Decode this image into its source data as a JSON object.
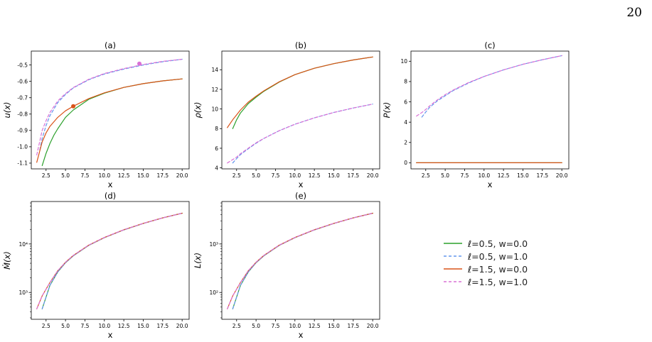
{
  "page": {
    "number": "20"
  },
  "colors": {
    "l05_w00": "#2ca02c",
    "l05_w10": "#6495ed",
    "l15_w00": "#d95319",
    "l15_w10": "#da70d6"
  },
  "legend": [
    {
      "label": "ℓ=0.5, w=0.0",
      "color": "#2ca02c",
      "dash": false
    },
    {
      "label": "ℓ=0.5, w=1.0",
      "color": "#6495ed",
      "dash": true
    },
    {
      "label": "ℓ=1.5, w=0.0",
      "color": "#d95319",
      "dash": false
    },
    {
      "label": "ℓ=1.5, w=1.0",
      "color": "#da70d6",
      "dash": true
    }
  ],
  "chart_data": [
    {
      "id": "a",
      "type": "line",
      "title": "(a)",
      "xlabel": "x",
      "ylabel": "u(x)",
      "scale": "linear",
      "xlim": [
        0.6,
        20.9
      ],
      "ylim": [
        -1.135,
        -0.415
      ],
      "xticks": [
        "2.5",
        "5.0",
        "7.5",
        "10.0",
        "12.5",
        "15.0",
        "17.5",
        "20.0"
      ],
      "yticks": [
        "-0.5",
        "-0.6",
        "-0.7",
        "-0.8",
        "-0.9",
        "-1.0",
        "-1.1"
      ],
      "series": [
        {
          "name": "ℓ=0.5, w=0.0",
          "color": "#2ca02c",
          "dash": false,
          "x": [
            2.0,
            2.5,
            3.0,
            3.5,
            4.0,
            5.0,
            6.0,
            8.0,
            10.0,
            12.5,
            15.0,
            17.5,
            20.0
          ],
          "y": [
            -1.115,
            -1.04,
            -0.98,
            -0.93,
            -0.89,
            -0.82,
            -0.775,
            -0.71,
            -0.672,
            -0.637,
            -0.614,
            -0.597,
            -0.585
          ]
        },
        {
          "name": "ℓ=0.5, w=1.0",
          "color": "#6495ed",
          "dash": true,
          "x": [
            1.7,
            2.0,
            2.5,
            3.0,
            4.0,
            5.0,
            6.0,
            8.0,
            10.0,
            12.5,
            15.0,
            17.5,
            20.0
          ],
          "y": [
            -1.02,
            -0.95,
            -0.87,
            -0.81,
            -0.73,
            -0.68,
            -0.64,
            -0.59,
            -0.555,
            -0.525,
            -0.5,
            -0.48,
            -0.465
          ]
        },
        {
          "name": "ℓ=1.5, w=0.0",
          "color": "#d95319",
          "dash": false,
          "x": [
            1.3,
            2.0,
            2.5,
            3.0,
            4.0,
            5.0,
            6.0,
            8.0,
            10.0,
            12.5,
            15.0,
            17.5,
            20.0
          ],
          "y": [
            -1.095,
            -0.97,
            -0.915,
            -0.875,
            -0.82,
            -0.78,
            -0.752,
            -0.705,
            -0.67,
            -0.637,
            -0.614,
            -0.597,
            -0.585
          ]
        },
        {
          "name": "ℓ=1.5, w=1.0",
          "color": "#da70d6",
          "dash": true,
          "x": [
            1.3,
            2.0,
            2.5,
            3.0,
            4.0,
            5.0,
            6.0,
            8.0,
            10.0,
            12.5,
            15.0,
            17.5,
            20.0
          ],
          "y": [
            -1.05,
            -0.9,
            -0.84,
            -0.79,
            -0.72,
            -0.675,
            -0.638,
            -0.587,
            -0.552,
            -0.522,
            -0.497,
            -0.478,
            -0.465
          ]
        }
      ],
      "markers": [
        {
          "x": 6.0,
          "y": -0.752,
          "color": "#d95319"
        },
        {
          "x": 14.5,
          "y": -0.492,
          "color": "#da70d6"
        }
      ]
    },
    {
      "id": "b",
      "type": "line",
      "title": "(b)",
      "xlabel": "x",
      "ylabel": "ρ(x)",
      "scale": "linear",
      "xlim": [
        0.6,
        20.9
      ],
      "ylim": [
        3.9,
        15.9
      ],
      "xticks": [
        "2.5",
        "5.0",
        "7.5",
        "10.0",
        "12.5",
        "15.0",
        "17.5",
        "20.0"
      ],
      "yticks": [
        "4",
        "6",
        "8",
        "10",
        "12",
        "14"
      ],
      "series": [
        {
          "name": "ℓ=0.5, w=0.0",
          "color": "#2ca02c",
          "dash": false,
          "x": [
            2.0,
            2.5,
            3.0,
            4.0,
            5.0,
            6.0,
            8.0,
            10.0,
            12.5,
            15.0,
            17.5,
            20.0
          ],
          "y": [
            8.0,
            8.9,
            9.6,
            10.55,
            11.2,
            11.8,
            12.75,
            13.5,
            14.15,
            14.62,
            15.0,
            15.3
          ]
        },
        {
          "name": "ℓ=0.5, w=1.0",
          "color": "#6495ed",
          "dash": true,
          "x": [
            2.0,
            2.5,
            3.0,
            4.0,
            5.0,
            6.0,
            8.0,
            10.0,
            12.5,
            15.0,
            17.5,
            20.0
          ],
          "y": [
            4.5,
            4.95,
            5.35,
            5.95,
            6.5,
            7.0,
            7.8,
            8.45,
            9.1,
            9.65,
            10.1,
            10.5
          ]
        },
        {
          "name": "ℓ=1.5, w=0.0",
          "color": "#d95319",
          "dash": false,
          "x": [
            1.3,
            2.0,
            2.5,
            3.0,
            4.0,
            5.0,
            6.0,
            8.0,
            10.0,
            12.5,
            15.0,
            17.5,
            20.0
          ],
          "y": [
            8.1,
            8.9,
            9.4,
            9.9,
            10.7,
            11.3,
            11.85,
            12.78,
            13.5,
            14.15,
            14.62,
            15.0,
            15.3
          ]
        },
        {
          "name": "ℓ=1.5, w=1.0",
          "color": "#da70d6",
          "dash": true,
          "x": [
            1.3,
            2.0,
            2.5,
            3.0,
            4.0,
            5.0,
            6.0,
            8.0,
            10.0,
            12.5,
            15.0,
            17.5,
            20.0
          ],
          "y": [
            4.5,
            4.85,
            5.1,
            5.45,
            6.0,
            6.55,
            7.0,
            7.8,
            8.45,
            9.1,
            9.65,
            10.1,
            10.5
          ]
        }
      ]
    },
    {
      "id": "c",
      "type": "line",
      "title": "(c)",
      "xlabel": "x",
      "ylabel": "P(x)",
      "scale": "linear",
      "xlim": [
        0.6,
        20.9
      ],
      "ylim": [
        -0.6,
        11.0
      ],
      "xticks": [
        "2.5",
        "5.0",
        "7.5",
        "10.0",
        "12.5",
        "15.0",
        "17.5",
        "20.0"
      ],
      "yticks": [
        "0",
        "2",
        "4",
        "6",
        "8",
        "10"
      ],
      "series": [
        {
          "name": "ℓ=0.5, w=0.0",
          "color": "#2ca02c",
          "dash": false,
          "x": [
            1.3,
            20.0
          ],
          "y": [
            0.0,
            0.0
          ]
        },
        {
          "name": "ℓ=0.5, w=1.0",
          "color": "#6495ed",
          "dash": true,
          "x": [
            2.0,
            2.5,
            3.0,
            4.0,
            5.0,
            6.0,
            8.0,
            10.0,
            12.5,
            15.0,
            17.5,
            20.0
          ],
          "y": [
            4.5,
            5.0,
            5.45,
            6.1,
            6.6,
            7.1,
            7.85,
            8.5,
            9.15,
            9.7,
            10.15,
            10.55
          ]
        },
        {
          "name": "ℓ=1.5, w=0.0",
          "color": "#d95319",
          "dash": false,
          "x": [
            1.3,
            20.0
          ],
          "y": [
            0.0,
            0.0
          ]
        },
        {
          "name": "ℓ=1.5, w=1.0",
          "color": "#da70d6",
          "dash": true,
          "x": [
            1.3,
            2.0,
            2.5,
            3.0,
            4.0,
            5.0,
            6.0,
            8.0,
            10.0,
            12.5,
            15.0,
            17.5,
            20.0
          ],
          "y": [
            4.6,
            4.95,
            5.25,
            5.6,
            6.2,
            6.7,
            7.15,
            7.9,
            8.5,
            9.15,
            9.7,
            10.15,
            10.55
          ]
        }
      ]
    },
    {
      "id": "d",
      "type": "line",
      "title": "(d)",
      "xlabel": "x",
      "ylabel": "Ṁ(x)",
      "scale": "log",
      "xlim": [
        0.6,
        20.9
      ],
      "ylim": [
        280,
        75000
      ],
      "xticks": [
        "2.5",
        "5.0",
        "7.5",
        "10.0",
        "12.5",
        "15.0",
        "17.5",
        "20.0"
      ],
      "yticks": [
        {
          "value": 1000,
          "label": "10³"
        },
        {
          "value": 10000,
          "label": "10⁴"
        }
      ],
      "series": [
        {
          "name": "ℓ=0.5, w=0.0",
          "color": "#2ca02c",
          "dash": false,
          "x": [
            2.0,
            3.0,
            4.0,
            5.0,
            6.0,
            8.0,
            10.0,
            12.5,
            15.0,
            17.5,
            20.0
          ],
          "y": [
            460,
            1400,
            2650,
            4100,
            5700,
            9400,
            13500,
            19500,
            26500,
            34500,
            43000
          ]
        },
        {
          "name": "ℓ=0.5, w=1.0",
          "color": "#6495ed",
          "dash": true,
          "x": [
            2.0,
            3.0,
            4.0,
            5.0,
            6.0,
            8.0,
            10.0,
            12.5,
            15.0,
            17.5,
            20.0
          ],
          "y": [
            460,
            1400,
            2650,
            4100,
            5700,
            9400,
            13500,
            19500,
            26500,
            34500,
            43000
          ]
        },
        {
          "name": "ℓ=1.5, w=0.0",
          "color": "#d95319",
          "dash": false,
          "x": [
            1.3,
            2.0,
            3.0,
            4.0,
            5.0,
            6.0,
            8.0,
            10.0,
            12.5,
            15.0,
            17.5,
            20.0
          ],
          "y": [
            460,
            850,
            1600,
            2800,
            4200,
            5800,
            9500,
            13600,
            19600,
            26600,
            34500,
            43000
          ]
        },
        {
          "name": "ℓ=1.5, w=1.0",
          "color": "#da70d6",
          "dash": true,
          "x": [
            1.3,
            2.0,
            3.0,
            4.0,
            5.0,
            6.0,
            8.0,
            10.0,
            12.5,
            15.0,
            17.5,
            20.0
          ],
          "y": [
            460,
            850,
            1600,
            2800,
            4200,
            5800,
            9500,
            13600,
            19600,
            26600,
            34500,
            43000
          ]
        }
      ]
    },
    {
      "id": "e",
      "type": "line",
      "title": "(e)",
      "xlabel": "x",
      "ylabel": "L(x)",
      "scale": "log",
      "xlim": [
        0.6,
        20.9
      ],
      "ylim": [
        28,
        7500
      ],
      "xticks": [
        "2.5",
        "5.0",
        "7.5",
        "10.0",
        "12.5",
        "15.0",
        "17.5",
        "20.0"
      ],
      "yticks": [
        {
          "value": 100,
          "label": "10²"
        },
        {
          "value": 1000,
          "label": "10³"
        }
      ],
      "series": [
        {
          "name": "ℓ=0.5, w=0.0",
          "color": "#2ca02c",
          "dash": false,
          "x": [
            2.0,
            3.0,
            4.0,
            5.0,
            6.0,
            8.0,
            10.0,
            12.5,
            15.0,
            17.5,
            20.0
          ],
          "y": [
            46,
            140,
            265,
            410,
            570,
            940,
            1350,
            1950,
            2650,
            3450,
            4300
          ]
        },
        {
          "name": "ℓ=0.5, w=1.0",
          "color": "#6495ed",
          "dash": true,
          "x": [
            2.0,
            3.0,
            4.0,
            5.0,
            6.0,
            8.0,
            10.0,
            12.5,
            15.0,
            17.5,
            20.0
          ],
          "y": [
            46,
            140,
            265,
            410,
            570,
            940,
            1350,
            1950,
            2650,
            3450,
            4300
          ]
        },
        {
          "name": "ℓ=1.5, w=0.0",
          "color": "#d95319",
          "dash": false,
          "x": [
            1.3,
            2.0,
            3.0,
            4.0,
            5.0,
            6.0,
            8.0,
            10.0,
            12.5,
            15.0,
            17.5,
            20.0
          ],
          "y": [
            46,
            85,
            160,
            280,
            420,
            580,
            950,
            1360,
            1960,
            2660,
            3450,
            4300
          ]
        },
        {
          "name": "ℓ=1.5, w=1.0",
          "color": "#da70d6",
          "dash": true,
          "x": [
            1.3,
            2.0,
            3.0,
            4.0,
            5.0,
            6.0,
            8.0,
            10.0,
            12.5,
            15.0,
            17.5,
            20.0
          ],
          "y": [
            46,
            85,
            160,
            280,
            420,
            580,
            950,
            1360,
            1960,
            2660,
            3450,
            4300
          ]
        }
      ]
    }
  ]
}
